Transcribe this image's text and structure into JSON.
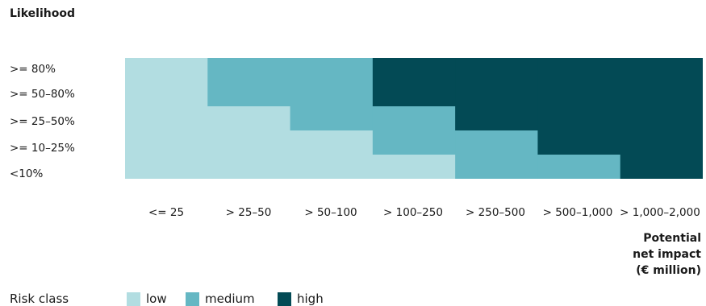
{
  "chart_data": {
    "type": "heatmap",
    "ylabel": "Likelihood",
    "xlabel_lines": [
      "Potential",
      "net impact",
      "(€ million)"
    ],
    "rows": [
      ">= 80%",
      ">= 50–80%",
      ">= 25–50%",
      ">= 10–25%",
      "<10%"
    ],
    "columns": [
      "<= 25",
      "> 25–50",
      "> 50–100",
      "> 100–250",
      "> 250–500",
      "> 500–1,000",
      "> 1,000–2,000"
    ],
    "values": [
      [
        "low",
        "medium",
        "medium",
        "high",
        "high",
        "high",
        "high"
      ],
      [
        "low",
        "medium",
        "medium",
        "high",
        "high",
        "high",
        "high"
      ],
      [
        "low",
        "low",
        "medium",
        "medium",
        "high",
        "high",
        "high"
      ],
      [
        "low",
        "low",
        "low",
        "medium",
        "medium",
        "high",
        "high"
      ],
      [
        "low",
        "low",
        "low",
        "low",
        "medium",
        "medium",
        "high"
      ]
    ],
    "legend_title": "Risk class",
    "legend": [
      {
        "key": "low",
        "label": "low",
        "color": "#b2dde1"
      },
      {
        "key": "medium",
        "label": "medium",
        "color": "#65b7c3"
      },
      {
        "key": "high",
        "label": "high",
        "color": "#034a55"
      }
    ]
  }
}
